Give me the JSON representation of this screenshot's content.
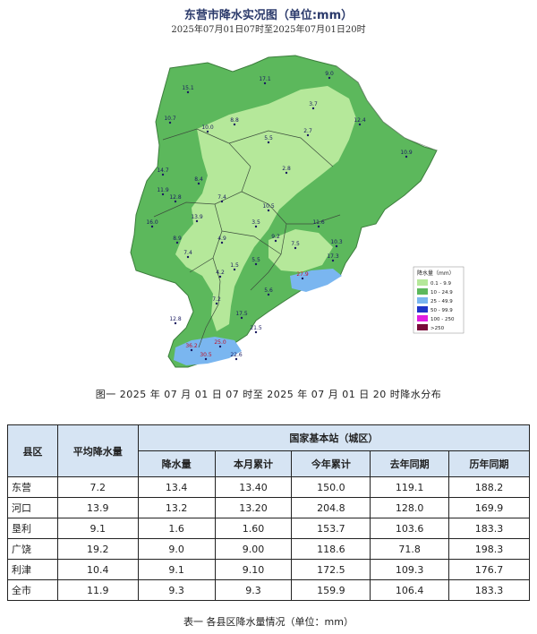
{
  "map": {
    "title": "东营市降水实况图（单位:mm）",
    "subtitle": "2025年07月01日07时至2025年07月01日20时",
    "legend": {
      "title": "降水量（mm）",
      "items": [
        {
          "label": "0.1 - 9.9",
          "color": "#b5e89a"
        },
        {
          "label": "10 - 24.9",
          "color": "#5cb85c"
        },
        {
          "label": "25 - 49.9",
          "color": "#7ab6f0"
        },
        {
          "label": "50 - 99.9",
          "color": "#1f35c8"
        },
        {
          "label": "100 - 250",
          "color": "#e21ee0"
        },
        {
          "label": ">250",
          "color": "#7a0a3a"
        }
      ]
    },
    "station_values": [
      "15.1",
      "9.0",
      "17.1",
      "10.7",
      "3.7",
      "12.4",
      "10.0",
      "8.8",
      "2.7",
      "10.9",
      "5.5",
      "2.8",
      "11.9",
      "8.4",
      "7.4",
      "12.8",
      "10.5",
      "13.9",
      "3.5",
      "4.9",
      "8.9",
      "7.4",
      "1.5",
      "9.2",
      "11.6",
      "10.3",
      "5.5",
      "4.2",
      "7.2",
      "5.6",
      "27.9",
      "17.5",
      "21.5",
      "12.8",
      "36.2",
      "25.0",
      "30.5",
      "22.6",
      "7.5",
      "17.3",
      "16.0",
      "14.7"
    ]
  },
  "figure_caption": "图一 2025 年 07 月 01 日 07 时至 2025 年 07 月 01 日 20 时降水分布",
  "table": {
    "headers": {
      "county": "县区",
      "avg": "平均降水量",
      "station_group": "国家基本站（城区）",
      "rain": "降水量",
      "month": "本月累计",
      "year": "今年累计",
      "last_year": "去年同期",
      "history": "历年同期"
    },
    "rows": [
      {
        "county": "东营",
        "avg": "7.2",
        "rain": "13.4",
        "month": "13.40",
        "year": "150.0",
        "last_year": "119.1",
        "history": "188.2"
      },
      {
        "county": "河口",
        "avg": "13.9",
        "rain": "13.2",
        "month": "13.20",
        "year": "204.8",
        "last_year": "128.0",
        "history": "169.9"
      },
      {
        "county": "垦利",
        "avg": "9.1",
        "rain": "1.6",
        "month": "1.60",
        "year": "153.7",
        "last_year": "103.6",
        "history": "183.3"
      },
      {
        "county": "广饶",
        "avg": "19.2",
        "rain": "9.0",
        "month": "9.00",
        "year": "118.6",
        "last_year": "71.8",
        "history": "198.3"
      },
      {
        "county": "利津",
        "avg": "10.4",
        "rain": "9.1",
        "month": "9.10",
        "year": "172.5",
        "last_year": "109.3",
        "history": "176.7"
      },
      {
        "county": "全市",
        "avg": "11.9",
        "rain": "9.3",
        "month": "9.3",
        "year": "159.9",
        "last_year": "106.4",
        "history": "183.3"
      }
    ]
  },
  "table_caption": "表一 各县区降水量情况（单位：mm）"
}
